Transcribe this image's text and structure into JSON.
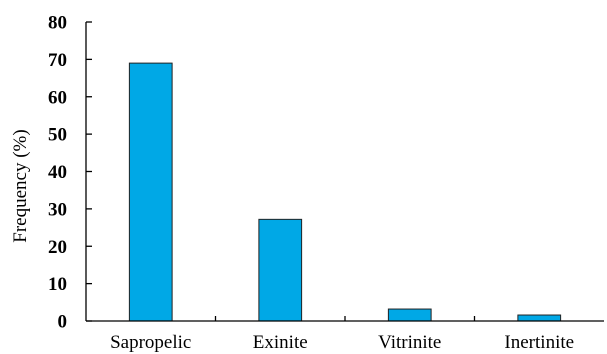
{
  "chart_data": {
    "type": "bar",
    "categories": [
      "Sapropelic",
      "Exinite",
      "Vitrinite",
      "Inertinite"
    ],
    "values": [
      69,
      27.2,
      3.2,
      1.6
    ],
    "title": "",
    "xlabel": "",
    "ylabel": "Frequency (%)",
    "ylim": [
      0,
      80
    ],
    "yticks": [
      0,
      10,
      20,
      30,
      40,
      50,
      60,
      70,
      80
    ],
    "bar_color": "#00a8e6",
    "grid": false,
    "legend": "none"
  }
}
